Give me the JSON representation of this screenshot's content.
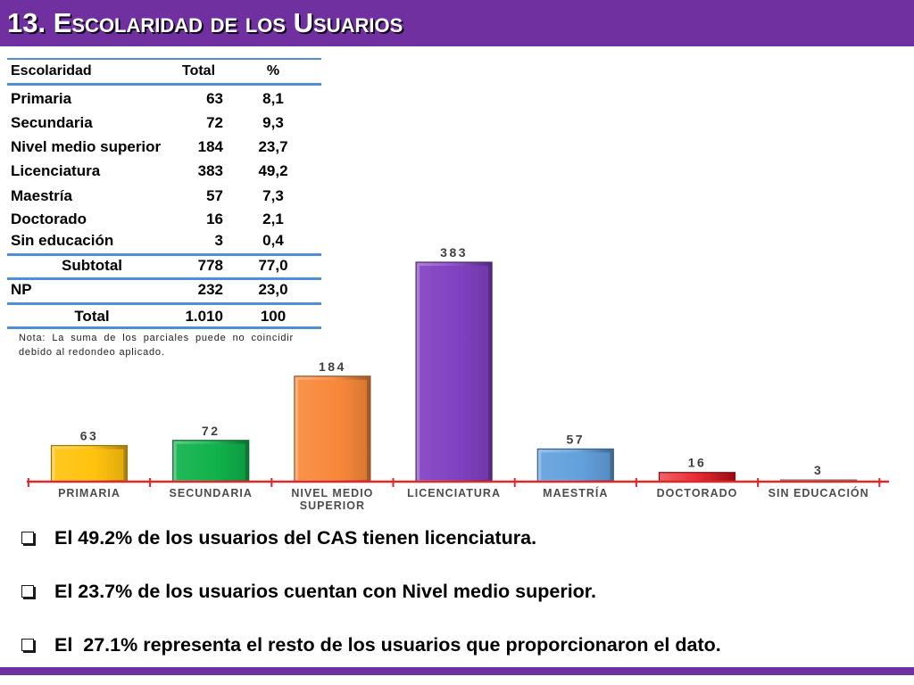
{
  "slide": {
    "title": "13. Escolaridad de los Usuarios",
    "colors": {
      "header_band": "#7030A0",
      "footer_band": "#7030A0",
      "title_text": "#FFFFFF",
      "table_rule": "#4F8FD8"
    }
  },
  "table": {
    "headers": [
      "Escolaridad",
      "Total",
      "%"
    ],
    "rows": [
      {
        "label": "Primaria",
        "total": "63",
        "pct": "8,1"
      },
      {
        "label": "Secundaria",
        "total": "72",
        "pct": "9,3"
      },
      {
        "label": "Nivel medio superior",
        "total": "184",
        "pct": "23,7"
      },
      {
        "label": "Licenciatura",
        "total": "383",
        "pct": "49,2"
      },
      {
        "label": "Maestría",
        "total": "57",
        "pct": "7,3"
      },
      {
        "label": "Doctorado",
        "total": "16",
        "pct": "2,1"
      },
      {
        "label": "Sin educación",
        "total": "3",
        "pct": "0,4"
      }
    ],
    "subtotal": {
      "label": "Subtotal",
      "total": "778",
      "pct": "77,0"
    },
    "np": {
      "label": "NP",
      "total": "232",
      "pct": "23,0"
    },
    "total": {
      "label": "Total",
      "total": "1.010",
      "pct": "100"
    }
  },
  "note": "Nota: La suma de los parciales puede no coincidir debido al redondeo aplicado.",
  "chart_data": {
    "type": "bar",
    "categories": [
      "PRIMARIA",
      "SECUNDARIA",
      "NIVEL MEDIO SUPERIOR",
      "LICENCIATURA",
      "MAESTRÍA",
      "DOCTORADO",
      "SIN EDUCACIÓN"
    ],
    "values": [
      63,
      72,
      184,
      383,
      57,
      16,
      3
    ],
    "colors": [
      "#FFC20E",
      "#10B14B",
      "#F7883A",
      "#8040C0",
      "#62A0DC",
      "#E6121B",
      "#BFBFBF"
    ],
    "axis_color": "#E0282B",
    "grid": false
  },
  "bullets": [
    {
      "icon": "hollow-square-bullet",
      "text": "El 49.2% de los usuarios del CAS tienen licenciatura."
    },
    {
      "icon": "hollow-square-bullet",
      "text": "El 23.7% de los usuarios cuentan con Nivel medio superior."
    },
    {
      "icon": "hollow-square-bullet",
      "text": "El  27.1% representa el resto de los usuarios que proporcionaron el dato."
    }
  ]
}
